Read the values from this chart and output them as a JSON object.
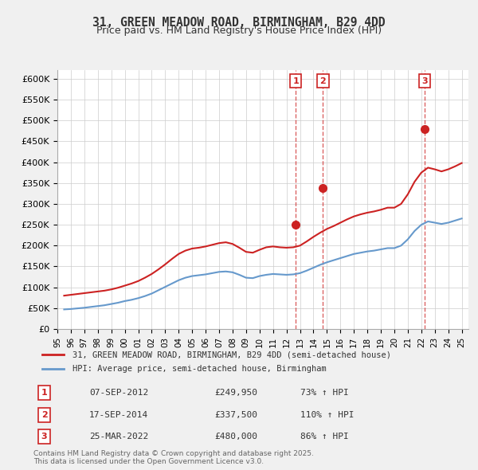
{
  "title1": "31, GREEN MEADOW ROAD, BIRMINGHAM, B29 4DD",
  "title2": "Price paid vs. HM Land Registry's House Price Index (HPI)",
  "bg_color": "#f0f0f0",
  "plot_bg_color": "#ffffff",
  "legend_line1": "31, GREEN MEADOW ROAD, BIRMINGHAM, B29 4DD (semi-detached house)",
  "legend_line2": "HPI: Average price, semi-detached house, Birmingham",
  "footer": "Contains HM Land Registry data © Crown copyright and database right 2025.\nThis data is licensed under the Open Government Licence v3.0.",
  "sales": [
    {
      "num": 1,
      "date": "07-SEP-2012",
      "price": 249950,
      "year": 2012.69,
      "hpi_pct": "73%"
    },
    {
      "num": 2,
      "date": "17-SEP-2014",
      "price": 337500,
      "year": 2014.71,
      "hpi_pct": "110%"
    },
    {
      "num": 3,
      "date": "25-MAR-2022",
      "price": 480000,
      "year": 2022.23,
      "hpi_pct": "86%"
    }
  ],
  "hpi_data": {
    "years": [
      1995.5,
      1996.0,
      1996.5,
      1997.0,
      1997.5,
      1998.0,
      1998.5,
      1999.0,
      1999.5,
      2000.0,
      2000.5,
      2001.0,
      2001.5,
      2002.0,
      2002.5,
      2003.0,
      2003.5,
      2004.0,
      2004.5,
      2005.0,
      2005.5,
      2006.0,
      2006.5,
      2007.0,
      2007.5,
      2008.0,
      2008.5,
      2009.0,
      2009.5,
      2010.0,
      2010.5,
      2011.0,
      2011.5,
      2012.0,
      2012.5,
      2013.0,
      2013.5,
      2014.0,
      2014.5,
      2015.0,
      2015.5,
      2016.0,
      2016.5,
      2017.0,
      2017.5,
      2018.0,
      2018.5,
      2019.0,
      2019.5,
      2020.0,
      2020.5,
      2021.0,
      2021.5,
      2022.0,
      2022.5,
      2023.0,
      2023.5,
      2024.0,
      2024.5,
      2025.0
    ],
    "values": [
      47000,
      48000,
      49500,
      51000,
      53000,
      55000,
      57000,
      60000,
      63000,
      67000,
      70000,
      74000,
      79000,
      85000,
      93000,
      101000,
      109000,
      117000,
      123000,
      127000,
      129000,
      131000,
      134000,
      137000,
      138000,
      136000,
      130000,
      123000,
      122000,
      127000,
      130000,
      132000,
      131000,
      130000,
      131000,
      134000,
      140000,
      147000,
      154000,
      160000,
      165000,
      170000,
      175000,
      180000,
      183000,
      186000,
      188000,
      191000,
      194000,
      194000,
      200000,
      215000,
      235000,
      250000,
      258000,
      255000,
      252000,
      255000,
      260000,
      265000
    ]
  },
  "price_data": {
    "years": [
      1995.5,
      1996.0,
      1996.5,
      1997.0,
      1997.5,
      1998.0,
      1998.5,
      1999.0,
      1999.5,
      2000.0,
      2000.5,
      2001.0,
      2001.5,
      2002.0,
      2002.5,
      2003.0,
      2003.5,
      2004.0,
      2004.5,
      2005.0,
      2005.5,
      2006.0,
      2006.5,
      2007.0,
      2007.5,
      2008.0,
      2008.5,
      2009.0,
      2009.5,
      2010.0,
      2010.5,
      2011.0,
      2011.5,
      2012.0,
      2012.5,
      2013.0,
      2013.5,
      2014.0,
      2014.5,
      2015.0,
      2015.5,
      2016.0,
      2016.5,
      2017.0,
      2017.5,
      2018.0,
      2018.5,
      2019.0,
      2019.5,
      2020.0,
      2020.5,
      2021.0,
      2021.5,
      2022.0,
      2022.5,
      2023.0,
      2023.5,
      2024.0,
      2024.5,
      2025.0
    ],
    "values": [
      80000,
      82000,
      84000,
      86000,
      88000,
      90000,
      92000,
      95000,
      99000,
      104000,
      109000,
      115000,
      123000,
      132000,
      143000,
      155000,
      168000,
      180000,
      188000,
      193000,
      195000,
      198000,
      202000,
      206000,
      208000,
      204000,
      195000,
      185000,
      183000,
      190000,
      196000,
      198000,
      196000,
      195000,
      196000,
      200000,
      210000,
      221000,
      231000,
      240000,
      247000,
      255000,
      263000,
      270000,
      275000,
      279000,
      282000,
      286000,
      291000,
      291000,
      300000,
      323000,
      353000,
      375000,
      387000,
      383000,
      378000,
      383000,
      390000,
      398000
    ]
  }
}
